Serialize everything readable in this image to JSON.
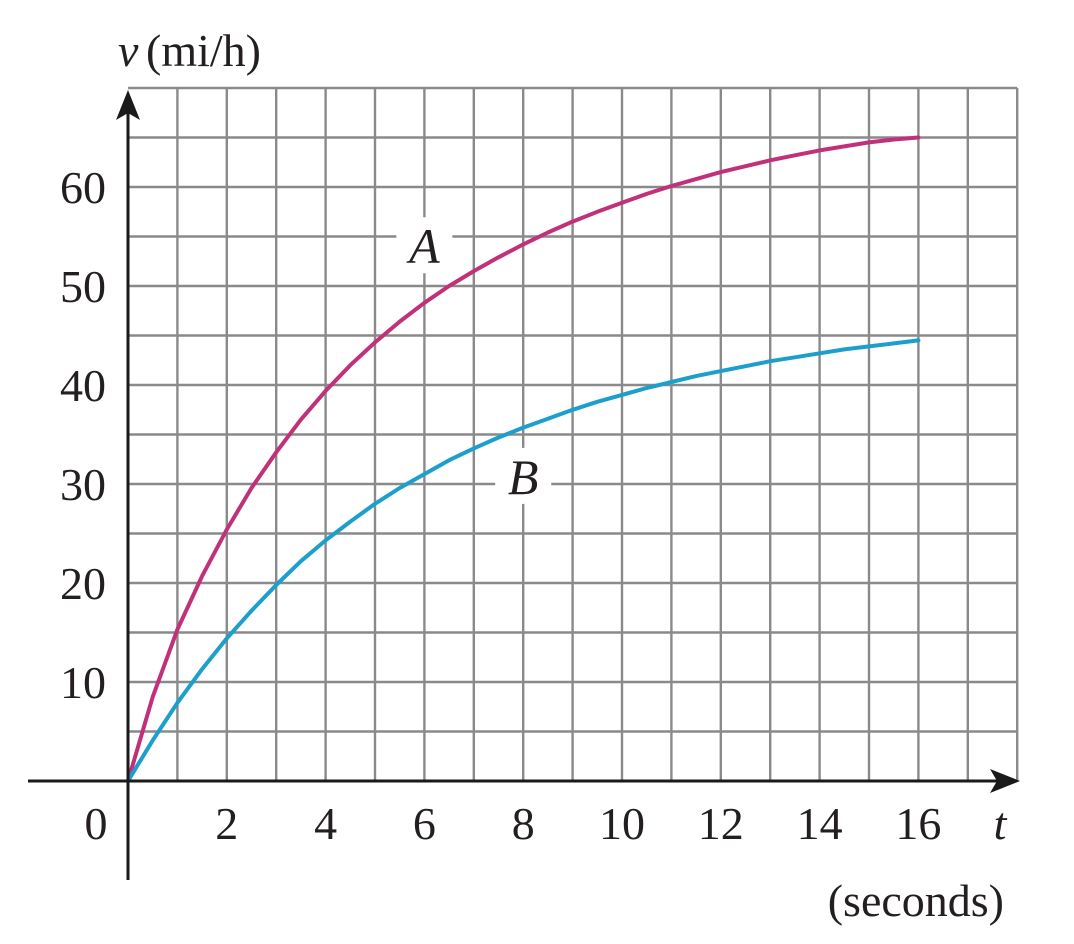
{
  "chart_data": {
    "type": "line",
    "xlabel_symbol": "t",
    "xlabel_unit": "(seconds)",
    "ylabel_symbol": "v",
    "ylabel_unit": "(mi/h)",
    "origin_label": "0",
    "xlim": [
      0,
      18
    ],
    "ylim": [
      0,
      70
    ],
    "x_ticks": [
      2,
      4,
      6,
      8,
      10,
      12,
      14,
      16
    ],
    "x_tick_labels": [
      "2",
      "4",
      "6",
      "8",
      "10",
      "12",
      "14",
      "16"
    ],
    "y_ticks": [
      10,
      20,
      30,
      40,
      50,
      60
    ],
    "y_tick_labels": [
      "10",
      "20",
      "30",
      "40",
      "50",
      "60"
    ],
    "grid": true,
    "grid_step_x": 1,
    "grid_step_y": 5,
    "series": [
      {
        "name": "A",
        "color": "#c1317a",
        "x": [
          0,
          0.5,
          1,
          1.5,
          2,
          2.5,
          3,
          3.5,
          4,
          4.5,
          5,
          5.5,
          6,
          6.5,
          7,
          7.5,
          8,
          8.5,
          9,
          9.5,
          10,
          10.5,
          11,
          11.5,
          12,
          12.5,
          13,
          13.5,
          14,
          14.5,
          15,
          15.5,
          16
        ],
        "y": [
          0,
          8.5,
          15.3,
          20.7,
          25.4,
          29.6,
          33.2,
          36.5,
          39.4,
          42.0,
          44.3,
          46.4,
          48.3,
          50.0,
          51.5,
          52.9,
          54.2,
          55.4,
          56.5,
          57.5,
          58.4,
          59.3,
          60.1,
          60.8,
          61.5,
          62.1,
          62.7,
          63.2,
          63.7,
          64.1,
          64.5,
          64.8,
          65.0
        ],
        "label_at": [
          6,
          52.3
        ]
      },
      {
        "name": "B",
        "color": "#1d9fcc",
        "x": [
          0,
          0.5,
          1,
          1.5,
          2,
          2.5,
          3,
          3.5,
          4,
          4.5,
          5,
          5.5,
          6,
          6.5,
          7,
          7.5,
          8,
          8.5,
          9,
          9.5,
          10,
          10.5,
          11,
          11.5,
          12,
          12.5,
          13,
          13.5,
          14,
          14.5,
          15,
          15.5,
          16
        ],
        "y": [
          0,
          4.1,
          7.9,
          11.3,
          14.4,
          17.2,
          19.8,
          22.2,
          24.3,
          26.2,
          28.0,
          29.6,
          31.0,
          32.4,
          33.6,
          34.7,
          35.7,
          36.6,
          37.5,
          38.3,
          39.0,
          39.7,
          40.3,
          40.9,
          41.4,
          41.9,
          42.4,
          42.8,
          43.2,
          43.6,
          43.9,
          44.2,
          44.5
        ],
        "label_at": [
          8,
          29.0
        ]
      }
    ]
  }
}
